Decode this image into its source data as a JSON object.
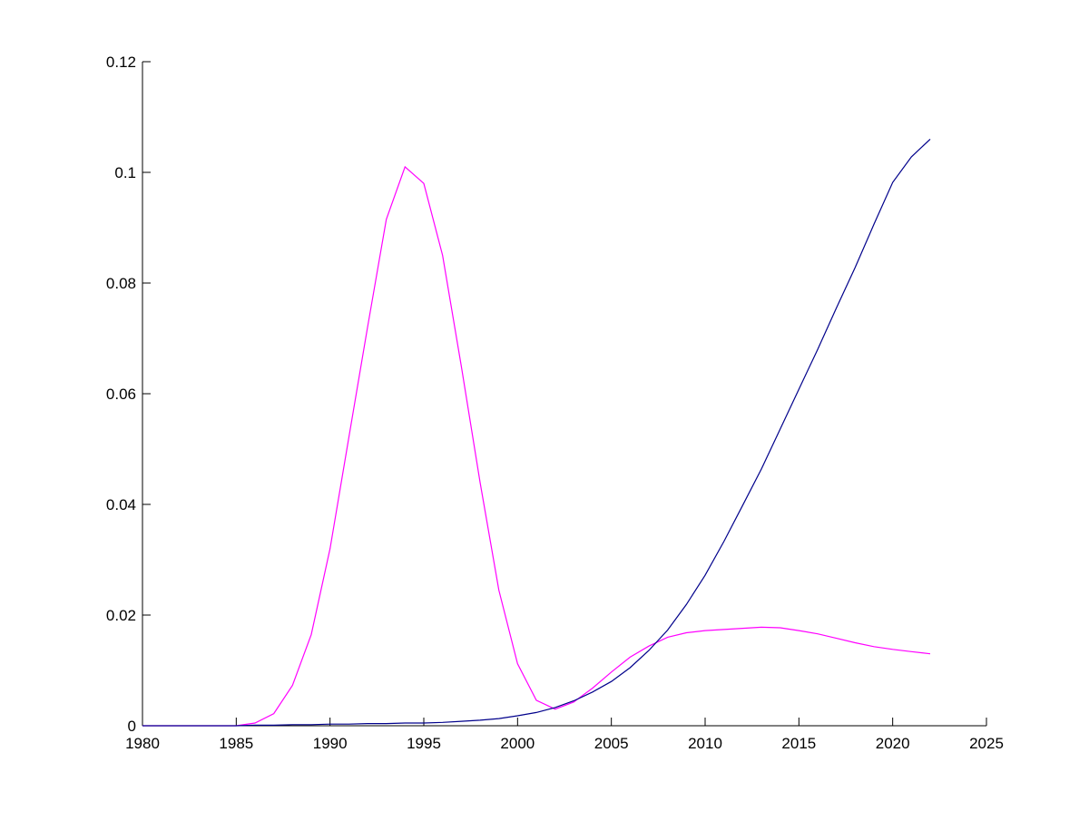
{
  "chart_data": {
    "type": "line",
    "title": "",
    "xlabel": "",
    "ylabel": "",
    "xlim": [
      1980,
      2025
    ],
    "ylim": [
      0,
      0.12
    ],
    "x_ticks": [
      1980,
      1985,
      1990,
      1995,
      2000,
      2005,
      2010,
      2015,
      2020,
      2025
    ],
    "y_ticks": [
      0,
      0.02,
      0.04,
      0.06,
      0.08,
      0.1,
      0.12
    ],
    "x_tick_labels": [
      "1980",
      "1985",
      "1990",
      "1995",
      "2000",
      "2005",
      "2010",
      "2015",
      "2020",
      "2025"
    ],
    "y_tick_labels": [
      "0",
      "0.02",
      "0.04",
      "0.06",
      "0.08",
      "0.1",
      "0.12"
    ],
    "grid": false,
    "legend": "none",
    "series": [
      {
        "color": "#ff00ff",
        "x": [
          1980,
          1981,
          1982,
          1983,
          1984,
          1985,
          1986,
          1987,
          1988,
          1989,
          1990,
          1991,
          1992,
          1993,
          1994,
          1995,
          1996,
          1997,
          1998,
          1999,
          2000,
          2001,
          2002,
          2003,
          2004,
          2005,
          2006,
          2007,
          2008,
          2009,
          2010,
          2011,
          2012,
          2013,
          2014,
          2015,
          2016,
          2017,
          2018,
          2019,
          2020,
          2021,
          2022
        ],
        "values": [
          0,
          0,
          0,
          0,
          0,
          0,
          0.0005,
          0.0022,
          0.0073,
          0.0165,
          0.032,
          0.052,
          0.072,
          0.0915,
          0.101,
          0.098,
          0.085,
          0.065,
          0.044,
          0.0245,
          0.0112,
          0.0046,
          0.003,
          0.0043,
          0.0068,
          0.0097,
          0.0124,
          0.0144,
          0.016,
          0.0168,
          0.0172,
          0.0174,
          0.0176,
          0.0178,
          0.0177,
          0.0172,
          0.0166,
          0.0158,
          0.015,
          0.0143,
          0.0138,
          0.0134,
          0.013
        ]
      },
      {
        "color": "#00008b",
        "x": [
          1980,
          1981,
          1982,
          1983,
          1984,
          1985,
          1986,
          1987,
          1988,
          1989,
          1990,
          1991,
          1992,
          1993,
          1994,
          1995,
          1996,
          1997,
          1998,
          1999,
          2000,
          2001,
          2002,
          2003,
          2004,
          2005,
          2006,
          2007,
          2008,
          2009,
          2010,
          2011,
          2012,
          2013,
          2014,
          2015,
          2016,
          2017,
          2018,
          2019,
          2020,
          2021,
          2022
        ],
        "values": [
          0,
          0,
          0,
          0,
          0,
          0,
          0.0001,
          0.0001,
          0.0002,
          0.0002,
          0.0003,
          0.0003,
          0.0004,
          0.0004,
          0.0005,
          0.0005,
          0.0006,
          0.0008,
          0.001,
          0.0013,
          0.0018,
          0.0024,
          0.0033,
          0.0045,
          0.0061,
          0.008,
          0.0105,
          0.0136,
          0.0173,
          0.0219,
          0.0272,
          0.0333,
          0.0398,
          0.0464,
          0.0536,
          0.0608,
          0.068,
          0.0755,
          0.0828,
          0.0906,
          0.0982,
          0.1028,
          0.106
        ]
      }
    ]
  }
}
